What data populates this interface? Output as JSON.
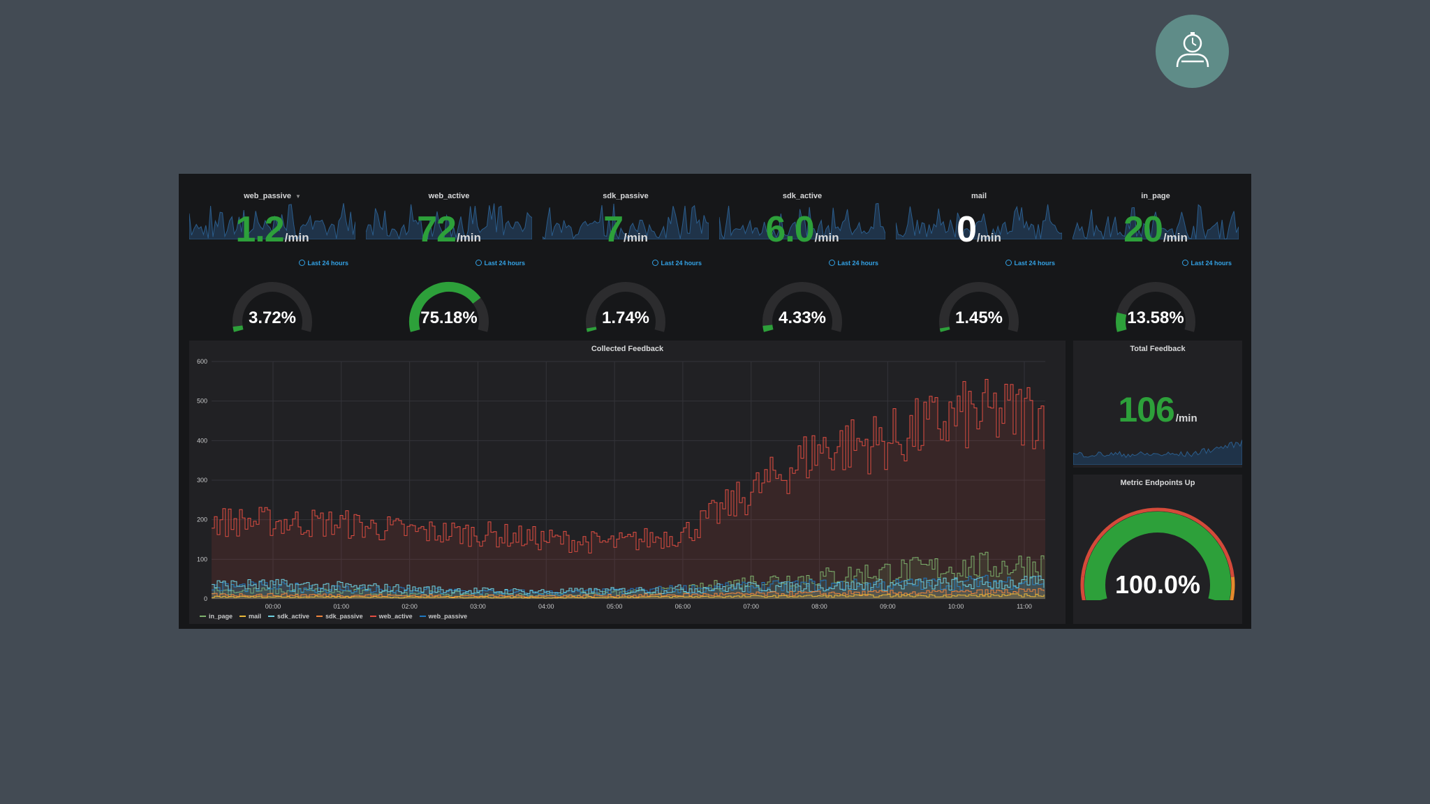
{
  "colors": {
    "background": "#434b54",
    "panel": "#161719",
    "green": "#2da03a",
    "blue_link": "#33a2e5",
    "gauge_track": "#2c2c2e",
    "red": "#d44a3a",
    "orange": "#e58a2d"
  },
  "logo": {
    "icon": "stopwatch-user-icon"
  },
  "stats": [
    {
      "title": "web_passive",
      "value": "1.2",
      "unit": "/min",
      "time": "Last 24 hours",
      "gauge_text": "3.72%",
      "gauge_value": 3.72
    },
    {
      "title": "web_active",
      "value": "72",
      "unit": "/min",
      "time": "Last 24 hours",
      "gauge_text": "75.18%",
      "gauge_value": 75.18
    },
    {
      "title": "sdk_passive",
      "value": "7",
      "unit": "/min",
      "time": "Last 24 hours",
      "gauge_text": "1.74%",
      "gauge_value": 1.74
    },
    {
      "title": "sdk_active",
      "value": "6.0",
      "unit": "/min",
      "time": "Last 24 hours",
      "gauge_text": "4.33%",
      "gauge_value": 4.33
    },
    {
      "title": "mail",
      "value": "0",
      "unit": "/min",
      "time": "Last 24 hours",
      "gauge_text": "1.45%",
      "gauge_value": 1.45
    },
    {
      "title": "in_page",
      "value": "20",
      "unit": "/min",
      "time": "Last 24 hours",
      "gauge_text": "13.58%",
      "gauge_value": 13.58
    }
  ],
  "graph": {
    "title": "Collected Feedback",
    "legend": [
      {
        "name": "in_page",
        "color": "#7eb26d"
      },
      {
        "name": "mail",
        "color": "#eab839"
      },
      {
        "name": "sdk_active",
        "color": "#6ed0e0"
      },
      {
        "name": "sdk_passive",
        "color": "#ef843c"
      },
      {
        "name": "web_active",
        "color": "#e24d42"
      },
      {
        "name": "web_passive",
        "color": "#1f78c1"
      }
    ]
  },
  "chart_data": {
    "type": "line",
    "title": "Collected Feedback",
    "x": [
      "00:00",
      "01:00",
      "02:00",
      "03:00",
      "04:00",
      "05:00",
      "06:00",
      "07:00",
      "08:00",
      "09:00",
      "10:00",
      "11:00"
    ],
    "ylim": [
      0,
      600
    ],
    "yticks": [
      0,
      100,
      200,
      300,
      400,
      500,
      600
    ],
    "series": [
      {
        "name": "web_active",
        "values": [
          195,
          190,
          170,
          165,
          150,
          140,
          165,
          270,
          380,
          400,
          460,
          470
        ]
      },
      {
        "name": "in_page",
        "values": [
          20,
          18,
          15,
          12,
          10,
          14,
          22,
          45,
          55,
          70,
          80,
          85
        ]
      },
      {
        "name": "web_passive",
        "values": [
          30,
          25,
          20,
          18,
          15,
          18,
          25,
          30,
          35,
          35,
          40,
          45
        ]
      },
      {
        "name": "sdk_active",
        "values": [
          35,
          30,
          25,
          20,
          18,
          20,
          25,
          30,
          30,
          35,
          38,
          40
        ]
      },
      {
        "name": "sdk_passive",
        "values": [
          10,
          9,
          8,
          7,
          7,
          8,
          10,
          12,
          14,
          15,
          16,
          18
        ]
      },
      {
        "name": "mail",
        "values": [
          5,
          5,
          4,
          4,
          3,
          4,
          5,
          6,
          7,
          8,
          8,
          9
        ]
      }
    ]
  },
  "total": {
    "title": "Total Feedback",
    "value": "106",
    "unit": "/min"
  },
  "endpoints": {
    "title": "Metric Endpoints Up",
    "value_text": "100.0%",
    "value": 100
  }
}
